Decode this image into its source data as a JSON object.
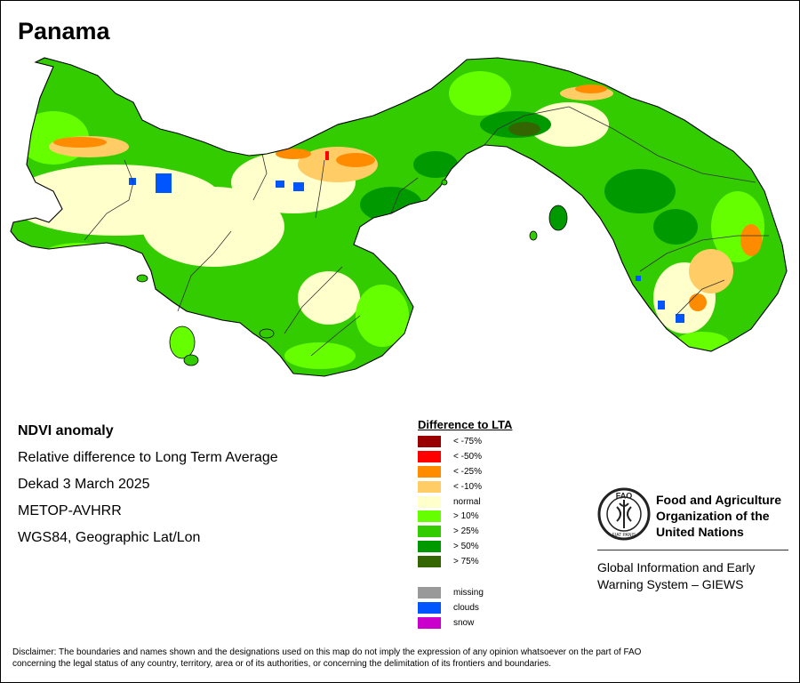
{
  "map": {
    "title": "Panama",
    "info_lines": [
      "NDVI anomaly",
      "Relative difference to Long Term Average",
      "Dekad 3 March 2025",
      "METOP-AVHRR",
      "WGS84, Geographic Lat/Lon"
    ]
  },
  "legend": {
    "title": "Difference to LTA",
    "classes": [
      {
        "label": "< -75%",
        "color": "#990000"
      },
      {
        "label": "< -50%",
        "color": "#ff0000"
      },
      {
        "label": "< -25%",
        "color": "#ff8c00"
      },
      {
        "label": "< -10%",
        "color": "#ffcc66"
      },
      {
        "label": "normal",
        "color": "#ffffcc"
      },
      {
        "label": "> 10%",
        "color": "#66ff00"
      },
      {
        "label": "> 25%",
        "color": "#33cc00"
      },
      {
        "label": "> 50%",
        "color": "#009900"
      },
      {
        "label": "> 75%",
        "color": "#336600"
      }
    ],
    "extra": [
      {
        "label": "missing",
        "color": "#999999"
      },
      {
        "label": "clouds",
        "color": "#0055ff"
      },
      {
        "label": "snow",
        "color": "#cc00cc"
      }
    ]
  },
  "fao": {
    "logo_text": "FAO",
    "logo_motto": "FIAT PANIS",
    "name_lines": [
      "Food and Agriculture",
      "Organization of the",
      "United Nations"
    ],
    "giews_lines": [
      "Global Information and Early",
      "Warning System – GIEWS"
    ]
  },
  "disclaimer": {
    "line1": "Disclaimer: The boundaries and names shown and the designations used on this map do not imply the expression of any opinion whatsoever on the part of FAO",
    "line2": "concerning the legal status of any country, territory, area or of its authorities, or concerning the delimitation of its frontiers and boundaries."
  }
}
